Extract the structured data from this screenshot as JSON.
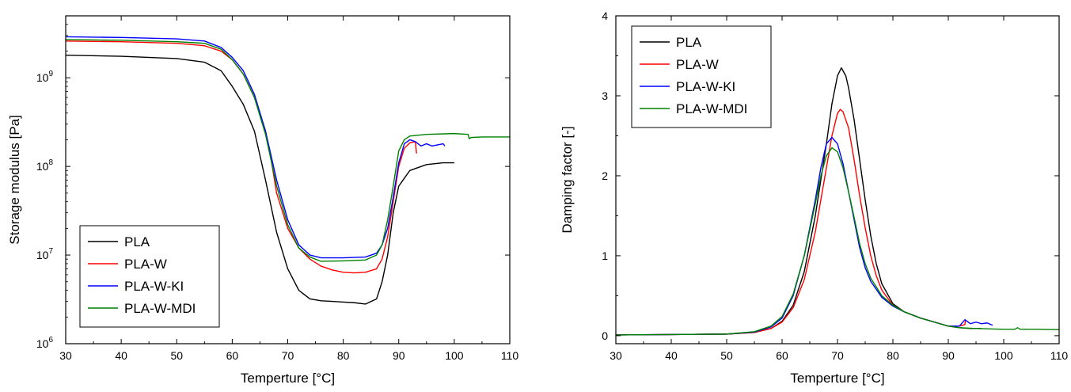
{
  "chart_data": [
    {
      "type": "line",
      "xlabel": "Temperture [°C]",
      "ylabel": "Storage modulus [Pa]",
      "y_scale": "log",
      "xlim": [
        30,
        110
      ],
      "ylim": [
        1000000,
        5000000000
      ],
      "x_ticks": [
        "30",
        "40",
        "50",
        "60",
        "70",
        "80",
        "90",
        "100",
        "110"
      ],
      "y_ticks": [
        {
          "value": 1000000,
          "base": "10",
          "exp": "6"
        },
        {
          "value": 10000000,
          "base": "10",
          "exp": "7"
        },
        {
          "value": 100000000,
          "base": "10",
          "exp": "8"
        },
        {
          "value": 1000000000,
          "base": "10",
          "exp": "9"
        }
      ],
      "grid": false,
      "legend_position": "bottom-left",
      "series": [
        {
          "name": "PLA",
          "color": "#000000",
          "points": [
            [
              30,
              1800000000.0
            ],
            [
              40,
              1750000000.0
            ],
            [
              50,
              1650000000.0
            ],
            [
              55,
              1500000000.0
            ],
            [
              58,
              1200000000.0
            ],
            [
              60,
              800000000.0
            ],
            [
              62,
              500000000.0
            ],
            [
              64,
              250000000.0
            ],
            [
              66,
              70000000.0
            ],
            [
              68,
              18000000.0
            ],
            [
              70,
              7000000.0
            ],
            [
              72,
              4000000.0
            ],
            [
              74,
              3200000.0
            ],
            [
              76,
              3050000.0
            ],
            [
              78,
              3000000.0
            ],
            [
              80,
              2950000.0
            ],
            [
              82,
              2900000.0
            ],
            [
              84,
              2800000.0
            ],
            [
              86,
              3200000.0
            ],
            [
              87,
              5000000.0
            ],
            [
              88,
              10000000.0
            ],
            [
              89,
              30000000.0
            ],
            [
              90,
              60000000.0
            ],
            [
              92,
              90000000.0
            ],
            [
              95,
              105000000.0
            ],
            [
              98,
              110000000.0
            ],
            [
              100,
              110000000.0
            ]
          ]
        },
        {
          "name": "PLA-W",
          "color": "#ff0000",
          "points": [
            [
              30,
              2600000000.0
            ],
            [
              40,
              2550000000.0
            ],
            [
              50,
              2450000000.0
            ],
            [
              55,
              2300000000.0
            ],
            [
              58,
              2000000000.0
            ],
            [
              60,
              1600000000.0
            ],
            [
              62,
              1100000000.0
            ],
            [
              64,
              600000000.0
            ],
            [
              66,
              250000000.0
            ],
            [
              67,
              120000000.0
            ],
            [
              68,
              50000000.0
            ],
            [
              70,
              20000000.0
            ],
            [
              72,
              12000000.0
            ],
            [
              74,
              9000000.0
            ],
            [
              76,
              7500000.0
            ],
            [
              78,
              6800000.0
            ],
            [
              80,
              6400000.0
            ],
            [
              82,
              6300000.0
            ],
            [
              84,
              6400000.0
            ],
            [
              86,
              7000000.0
            ],
            [
              87,
              9000000.0
            ],
            [
              88,
              16000000.0
            ],
            [
              89,
              40000000.0
            ],
            [
              90,
              100000000.0
            ],
            [
              91,
              160000000.0
            ],
            [
              92,
              185000000.0
            ],
            [
              93,
              190000000.0
            ],
            [
              93.2,
              140000000.0
            ]
          ]
        },
        {
          "name": "PLA-W-KI",
          "color": "#0000ff",
          "points": [
            [
              30,
              2900000000.0
            ],
            [
              40,
              2850000000.0
            ],
            [
              50,
              2750000000.0
            ],
            [
              55,
              2600000000.0
            ],
            [
              58,
              2200000000.0
            ],
            [
              60,
              1700000000.0
            ],
            [
              62,
              1200000000.0
            ],
            [
              64,
              650000000.0
            ],
            [
              66,
              250000000.0
            ],
            [
              68,
              70000000.0
            ],
            [
              70,
              25000000.0
            ],
            [
              72,
              13000000.0
            ],
            [
              74,
              10000000.0
            ],
            [
              76,
              9300000.0
            ],
            [
              80,
              9300000.0
            ],
            [
              84,
              9500000.0
            ],
            [
              86,
              10500000.0
            ],
            [
              87,
              13000000.0
            ],
            [
              88,
              20000000.0
            ],
            [
              89,
              45000000.0
            ],
            [
              90,
              110000000.0
            ],
            [
              91,
              180000000.0
            ],
            [
              92,
              200000000.0
            ],
            [
              93,
              190000000.0
            ],
            [
              94,
              170000000.0
            ],
            [
              95,
              180000000.0
            ],
            [
              96,
              170000000.0
            ],
            [
              97,
              175000000.0
            ],
            [
              98,
              180000000.0
            ],
            [
              98.3,
              170000000.0
            ]
          ]
        },
        {
          "name": "PLA-W-MDI",
          "color": "#008000",
          "points": [
            [
              30,
              2700000000.0
            ],
            [
              40,
              2650000000.0
            ],
            [
              50,
              2550000000.0
            ],
            [
              55,
              2450000000.0
            ],
            [
              58,
              2100000000.0
            ],
            [
              60,
              1600000000.0
            ],
            [
              62,
              1100000000.0
            ],
            [
              64,
              600000000.0
            ],
            [
              66,
              230000000.0
            ],
            [
              68,
              60000000.0
            ],
            [
              70,
              22000000.0
            ],
            [
              72,
              12000000.0
            ],
            [
              74,
              9500000.0
            ],
            [
              76,
              8500000.0
            ],
            [
              80,
              8600000.0
            ],
            [
              84,
              8800000.0
            ],
            [
              86,
              10000000.0
            ],
            [
              87,
              13000000.0
            ],
            [
              88,
              25000000.0
            ],
            [
              89,
              60000000.0
            ],
            [
              90,
              150000000.0
            ],
            [
              91,
              200000000.0
            ],
            [
              92,
              220000000.0
            ],
            [
              95,
              230000000.0
            ],
            [
              100,
              235000000.0
            ],
            [
              102.5,
              230000000.0
            ],
            [
              102.7,
              205000000.0
            ],
            [
              103,
              212000000.0
            ],
            [
              105,
              215000000.0
            ],
            [
              110,
              215000000.0
            ]
          ]
        }
      ]
    },
    {
      "type": "line",
      "xlabel": "Temperture [°C]",
      "ylabel": "Damping factor [-]",
      "xlim": [
        30,
        110
      ],
      "ylim": [
        -0.1,
        4
      ],
      "x_ticks": [
        "30",
        "40",
        "50",
        "60",
        "70",
        "80",
        "90",
        "100",
        "110"
      ],
      "y_ticks": [
        "0",
        "1",
        "2",
        "3",
        "4"
      ],
      "grid": false,
      "legend_position": "top-left",
      "series": [
        {
          "name": "PLA",
          "color": "#000000",
          "points": [
            [
              30,
              0.01
            ],
            [
              40,
              0.015
            ],
            [
              50,
              0.02
            ],
            [
              55,
              0.04
            ],
            [
              58,
              0.09
            ],
            [
              60,
              0.18
            ],
            [
              62,
              0.38
            ],
            [
              64,
              0.8
            ],
            [
              66,
              1.5
            ],
            [
              68,
              2.4
            ],
            [
              69,
              2.9
            ],
            [
              70,
              3.25
            ],
            [
              70.7,
              3.35
            ],
            [
              71.5,
              3.25
            ],
            [
              72,
              3.1
            ],
            [
              73,
              2.7
            ],
            [
              74,
              2.2
            ],
            [
              75,
              1.7
            ],
            [
              76,
              1.25
            ],
            [
              77,
              0.9
            ],
            [
              78,
              0.65
            ],
            [
              80,
              0.4
            ],
            [
              82,
              0.3
            ],
            [
              85,
              0.22
            ],
            [
              88,
              0.16
            ],
            [
              90,
              0.12
            ],
            [
              92,
              0.1
            ],
            [
              94,
              0.09
            ],
            [
              96,
              0.09
            ]
          ]
        },
        {
          "name": "PLA-W",
          "color": "#ff0000",
          "points": [
            [
              30,
              0.01
            ],
            [
              40,
              0.015
            ],
            [
              50,
              0.02
            ],
            [
              55,
              0.04
            ],
            [
              58,
              0.09
            ],
            [
              60,
              0.17
            ],
            [
              62,
              0.35
            ],
            [
              64,
              0.7
            ],
            [
              66,
              1.3
            ],
            [
              68,
              2.1
            ],
            [
              69,
              2.5
            ],
            [
              70,
              2.78
            ],
            [
              70.5,
              2.83
            ],
            [
              71,
              2.8
            ],
            [
              72,
              2.6
            ],
            [
              73,
              2.2
            ],
            [
              74,
              1.75
            ],
            [
              75,
              1.35
            ],
            [
              76,
              1.0
            ],
            [
              77,
              0.75
            ],
            [
              78,
              0.57
            ],
            [
              80,
              0.38
            ],
            [
              82,
              0.3
            ],
            [
              85,
              0.22
            ],
            [
              88,
              0.16
            ],
            [
              90,
              0.12
            ],
            [
              92,
              0.12
            ],
            [
              93,
              0.14
            ],
            [
              93.1,
              0.2
            ]
          ]
        },
        {
          "name": "PLA-W-KI",
          "color": "#0000ff",
          "points": [
            [
              30,
              0.01
            ],
            [
              40,
              0.015
            ],
            [
              50,
              0.02
            ],
            [
              55,
              0.045
            ],
            [
              58,
              0.11
            ],
            [
              60,
              0.22
            ],
            [
              62,
              0.5
            ],
            [
              64,
              1.0
            ],
            [
              66,
              1.7
            ],
            [
              67,
              2.1
            ],
            [
              68,
              2.4
            ],
            [
              69,
              2.48
            ],
            [
              70,
              2.4
            ],
            [
              71,
              2.15
            ],
            [
              72,
              1.8
            ],
            [
              73,
              1.45
            ],
            [
              74,
              1.1
            ],
            [
              75,
              0.85
            ],
            [
              76,
              0.68
            ],
            [
              78,
              0.48
            ],
            [
              80,
              0.37
            ],
            [
              82,
              0.3
            ],
            [
              85,
              0.22
            ],
            [
              88,
              0.16
            ],
            [
              90,
              0.12
            ],
            [
              92,
              0.12
            ],
            [
              93,
              0.2
            ],
            [
              94,
              0.15
            ],
            [
              95,
              0.17
            ],
            [
              96,
              0.15
            ],
            [
              97,
              0.16
            ],
            [
              98,
              0.13
            ]
          ]
        },
        {
          "name": "PLA-W-MDI",
          "color": "#008000",
          "points": [
            [
              30,
              0.01
            ],
            [
              40,
              0.015
            ],
            [
              50,
              0.02
            ],
            [
              55,
              0.05
            ],
            [
              58,
              0.12
            ],
            [
              60,
              0.24
            ],
            [
              62,
              0.52
            ],
            [
              64,
              1.0
            ],
            [
              66,
              1.65
            ],
            [
              67,
              2.0
            ],
            [
              68,
              2.25
            ],
            [
              69,
              2.35
            ],
            [
              70,
              2.3
            ],
            [
              71,
              2.1
            ],
            [
              72,
              1.8
            ],
            [
              73,
              1.48
            ],
            [
              74,
              1.15
            ],
            [
              75,
              0.9
            ],
            [
              76,
              0.72
            ],
            [
              78,
              0.5
            ],
            [
              80,
              0.38
            ],
            [
              82,
              0.3
            ],
            [
              85,
              0.22
            ],
            [
              88,
              0.16
            ],
            [
              90,
              0.12
            ],
            [
              92,
              0.1
            ],
            [
              95,
              0.09
            ],
            [
              100,
              0.08
            ],
            [
              102,
              0.08
            ],
            [
              102.5,
              0.1
            ],
            [
              103,
              0.08
            ],
            [
              106,
              0.08
            ],
            [
              110,
              0.075
            ]
          ]
        }
      ]
    }
  ]
}
